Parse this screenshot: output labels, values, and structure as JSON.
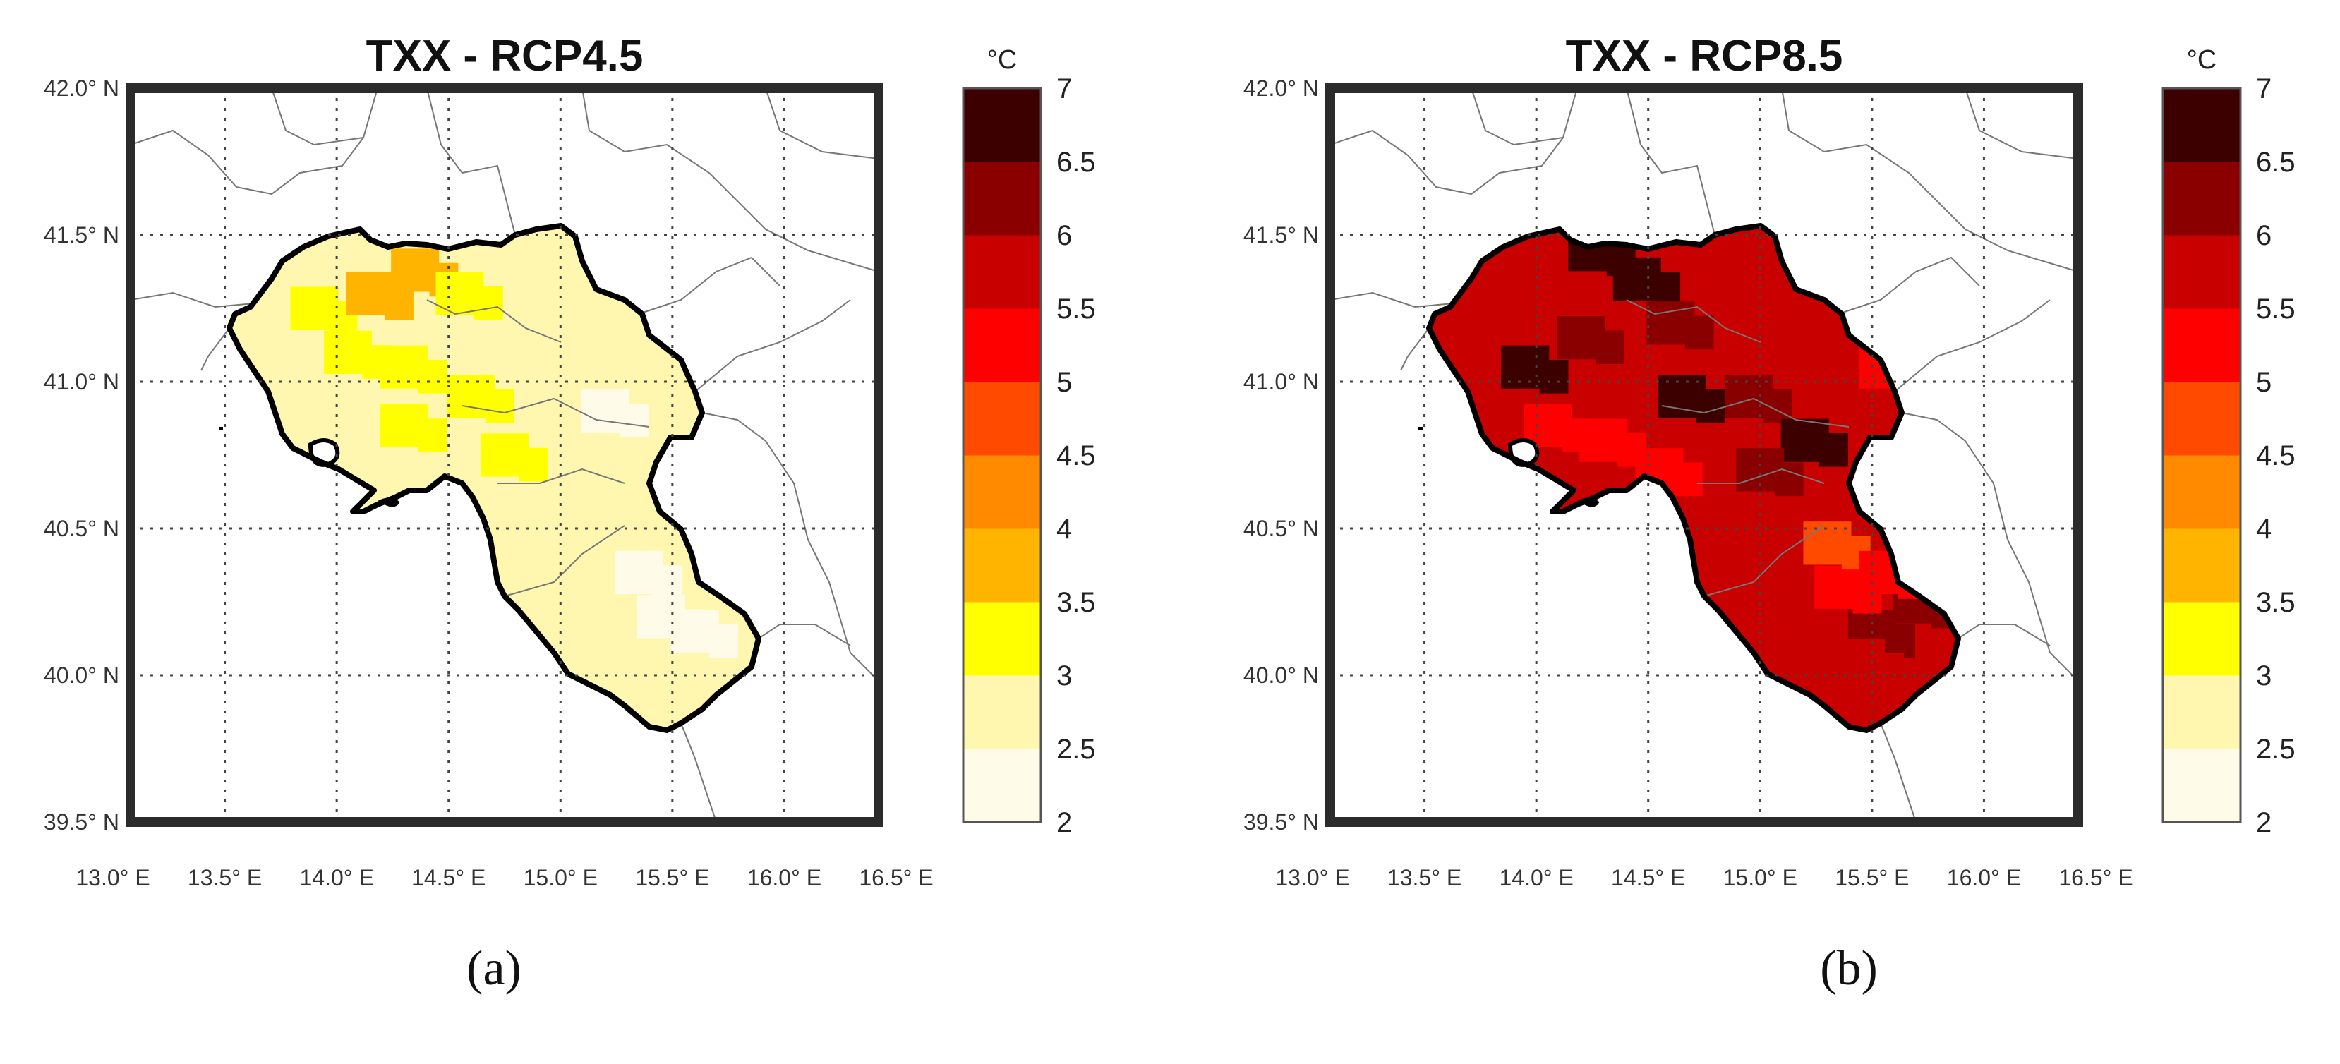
{
  "figure": {
    "colors": {
      "scale": [
        "#fffbe9",
        "#fff7b0",
        "#ffff00",
        "#ffb400",
        "#ff8a00",
        "#ff4a00",
        "#ff0000",
        "#c80000",
        "#8a0000",
        "#3c0000"
      ],
      "frame": "#2b2b2b",
      "region_outline": "#000000"
    },
    "colorbar": {
      "unit": "°C",
      "ticks": [
        "2",
        "2.5",
        "3",
        "3.5",
        "4",
        "4.5",
        "5",
        "5.5",
        "6",
        "6.5",
        "7"
      ],
      "min": 2,
      "max": 7,
      "step": 0.5
    },
    "axes": {
      "lon_ticks": [
        "13.0° E",
        "13.5° E",
        "14.0° E",
        "14.5° E",
        "15.0° E",
        "15.5° E",
        "16.0° E",
        "16.5° E"
      ],
      "lat_ticks": [
        "42.0° N",
        "41.5° N",
        "41.0° N",
        "40.5° N",
        "40.0° N",
        "39.5° N"
      ],
      "lon_range": [
        13.0,
        16.5
      ],
      "lat_range": [
        39.5,
        42.0
      ]
    },
    "panels": [
      {
        "title": "TXX - RCP4.5",
        "caption": "(a)",
        "base_value": 2.7,
        "patches": [
          {
            "lon": 13.9,
            "lat": 41.25,
            "value": 3.2
          },
          {
            "lon": 14.15,
            "lat": 41.3,
            "value": 3.7
          },
          {
            "lon": 14.35,
            "lat": 41.38,
            "value": 3.6
          },
          {
            "lon": 14.05,
            "lat": 41.1,
            "value": 3.1
          },
          {
            "lon": 14.3,
            "lat": 41.05,
            "value": 3.3
          },
          {
            "lon": 14.55,
            "lat": 41.3,
            "value": 3.1
          },
          {
            "lon": 14.6,
            "lat": 40.95,
            "value": 3.0
          },
          {
            "lon": 14.3,
            "lat": 40.85,
            "value": 3.1
          },
          {
            "lon": 14.75,
            "lat": 40.75,
            "value": 3.0
          },
          {
            "lon": 15.2,
            "lat": 40.9,
            "value": 2.4
          },
          {
            "lon": 15.35,
            "lat": 40.35,
            "value": 2.2
          },
          {
            "lon": 15.45,
            "lat": 40.2,
            "value": 2.1
          },
          {
            "lon": 15.6,
            "lat": 40.15,
            "value": 2.3
          }
        ]
      },
      {
        "title": "TXX - RCP8.5",
        "caption": "(b)",
        "base_value": 5.9,
        "patches": [
          {
            "lon": 14.25,
            "lat": 41.45,
            "value": 6.8
          },
          {
            "lon": 14.45,
            "lat": 41.35,
            "value": 6.7
          },
          {
            "lon": 13.95,
            "lat": 41.05,
            "value": 6.6
          },
          {
            "lon": 14.2,
            "lat": 41.15,
            "value": 6.3
          },
          {
            "lon": 14.6,
            "lat": 41.2,
            "value": 6.4
          },
          {
            "lon": 14.65,
            "lat": 40.95,
            "value": 6.5
          },
          {
            "lon": 14.95,
            "lat": 40.95,
            "value": 6.3
          },
          {
            "lon": 15.2,
            "lat": 40.8,
            "value": 6.8
          },
          {
            "lon": 15.5,
            "lat": 40.15,
            "value": 6.4
          },
          {
            "lon": 15.7,
            "lat": 40.25,
            "value": 6.3
          },
          {
            "lon": 15.0,
            "lat": 40.7,
            "value": 6.4
          },
          {
            "lon": 14.3,
            "lat": 40.8,
            "value": 5.4
          },
          {
            "lon": 14.55,
            "lat": 40.7,
            "value": 5.3
          },
          {
            "lon": 14.05,
            "lat": 40.85,
            "value": 5.4
          },
          {
            "lon": 15.35,
            "lat": 40.3,
            "value": 5.3
          },
          {
            "lon": 15.3,
            "lat": 40.45,
            "value": 4.6
          },
          {
            "lon": 15.55,
            "lat": 40.35,
            "value": 5.4
          },
          {
            "lon": 15.45,
            "lat": 40.05,
            "value": 5.5
          },
          {
            "lon": 15.55,
            "lat": 41.05,
            "value": 5.4
          }
        ]
      }
    ]
  }
}
